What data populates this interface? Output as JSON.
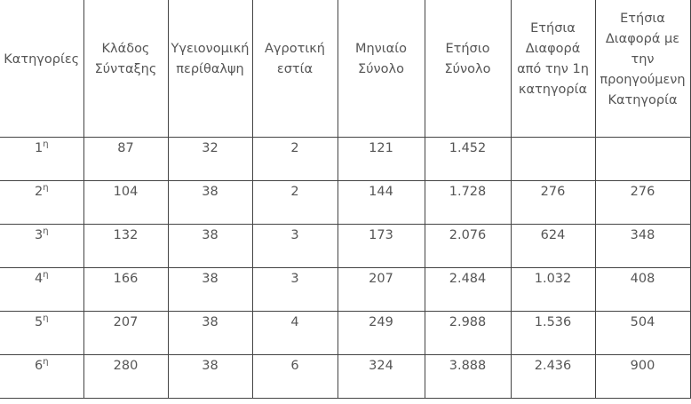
{
  "table": {
    "headers": [
      "Κατηγορίες",
      "Κλάδος Σύνταξης",
      "Υγειονομική περίθαλψη",
      "Αγροτική εστία",
      "Μηνιαίο Σύνολο",
      "Ετήσιο Σύνολο",
      "Ετήσια Διαφορά από την 1η κατηγορία",
      "Ετήσια Διαφορά με την προηγούμενη Κατηγορία"
    ],
    "rows": [
      [
        {
          "num": "1",
          "sup": "η"
        },
        "87",
        "32",
        "2",
        "121",
        "1.452",
        null,
        null
      ],
      [
        {
          "num": "2",
          "sup": "η"
        },
        "104",
        "38",
        "2",
        "144",
        "1.728",
        "276",
        "276"
      ],
      [
        {
          "num": "3",
          "sup": "η"
        },
        "132",
        "38",
        "3",
        "173",
        "2.076",
        "624",
        "348"
      ],
      [
        {
          "num": "4",
          "sup": "η"
        },
        "166",
        "38",
        "3",
        "207",
        "2.484",
        "1.032",
        "408"
      ],
      [
        {
          "num": "5",
          "sup": "η"
        },
        "207",
        "38",
        "4",
        "249",
        "2.988",
        "1.536",
        "504"
      ],
      [
        {
          "num": "6",
          "sup": "η"
        },
        "280",
        "38",
        "6",
        "324",
        "3.888",
        "2.436",
        "900"
      ]
    ]
  }
}
